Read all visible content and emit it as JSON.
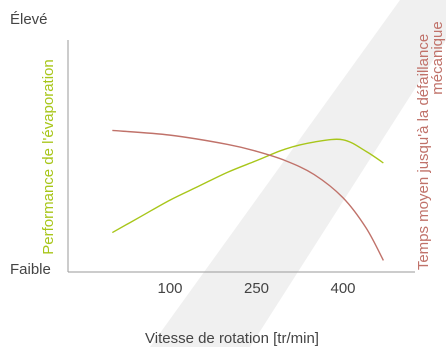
{
  "chart_data": {
    "type": "line",
    "xlabel": "Vitesse de rotation [tr/min]",
    "x_ticks": [
      100,
      250,
      400
    ],
    "xlim": [
      -40,
      520
    ],
    "ylim": [
      0,
      100
    ],
    "y_top_label": "Élevé",
    "y_bottom_label": "Faible",
    "y_left_label": "Performance de l'évaporation",
    "y_right_label_line1": "Temps moyen jusqu'à la défaillance",
    "y_right_label_line2": "mécanique",
    "grid": false,
    "series": [
      {
        "name": "Performance de l'évaporation",
        "color": "#a8c61a",
        "axis": "left",
        "points": [
          [
            0,
            17
          ],
          [
            50,
            24
          ],
          [
            100,
            31
          ],
          [
            150,
            37
          ],
          [
            200,
            43
          ],
          [
            250,
            48
          ],
          [
            300,
            53
          ],
          [
            350,
            56
          ],
          [
            400,
            57
          ],
          [
            440,
            52
          ],
          [
            470,
            47
          ]
        ]
      },
      {
        "name": "Temps moyen jusqu'à la défaillance mécanique",
        "color": "#c0726a",
        "axis": "right",
        "points": [
          [
            0,
            61
          ],
          [
            100,
            59
          ],
          [
            200,
            55
          ],
          [
            250,
            52
          ],
          [
            300,
            48
          ],
          [
            350,
            42
          ],
          [
            400,
            32
          ],
          [
            440,
            19
          ],
          [
            470,
            5
          ]
        ]
      }
    ]
  },
  "watermark_color": "#f0f0f0"
}
